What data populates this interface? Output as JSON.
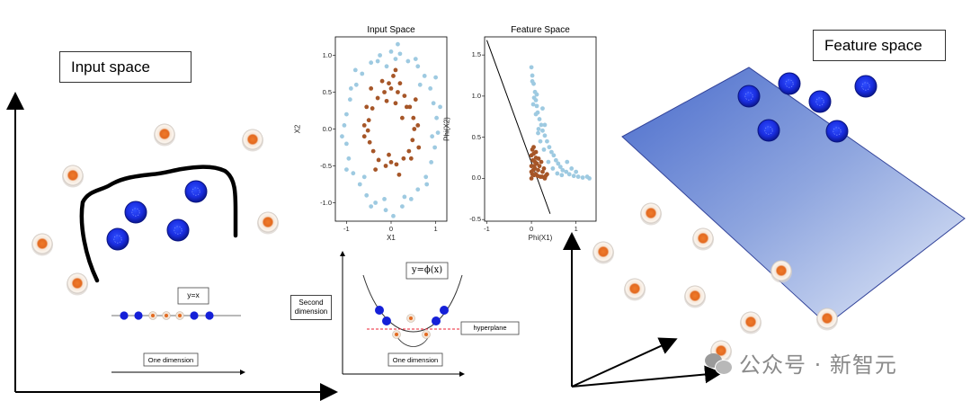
{
  "left_panel": {
    "title": "Input space",
    "inset_formula": "y=x",
    "inset_axis_label": "One dimension"
  },
  "middle_panel": {
    "formula": "y=ϕ(x)",
    "axis_y_label_line1": "Second",
    "axis_y_label_line2": "dimension",
    "axis_x_label": "One dimension",
    "hyperplane_label": "hyperplane"
  },
  "right_panel": {
    "title": "Feature space"
  },
  "watermark": {
    "text": "公众号 · 新智元"
  },
  "chart_data": [
    {
      "type": "scatter",
      "title": "Input Space",
      "xlabel": "X1",
      "ylabel": "X2",
      "xlim": [
        -1.25,
        1.25
      ],
      "ylim": [
        -1.25,
        1.25
      ],
      "xticks": [
        -1,
        0,
        1
      ],
      "yticks": [
        -1.0,
        -0.5,
        0.0,
        0.5,
        1.0
      ],
      "colors": {
        "outer": "#9ecae1",
        "inner": "#a65628"
      },
      "series": [
        {
          "points": [
            [
              0.0,
              1.05
            ],
            [
              0.2,
              1.02
            ],
            [
              -0.25,
              1.0
            ],
            [
              0.38,
              0.92
            ],
            [
              -0.45,
              0.9
            ],
            [
              0.6,
              0.85
            ],
            [
              -0.65,
              0.75
            ],
            [
              0.75,
              0.72
            ],
            [
              -0.78,
              0.6
            ],
            [
              0.88,
              0.55
            ],
            [
              -0.92,
              0.4
            ],
            [
              0.95,
              0.35
            ],
            [
              -1.0,
              0.2
            ],
            [
              1.02,
              0.15
            ],
            [
              -1.05,
              0.05
            ],
            [
              1.05,
              -0.05
            ],
            [
              -1.0,
              -0.2
            ],
            [
              0.98,
              -0.25
            ],
            [
              -0.95,
              -0.4
            ],
            [
              0.9,
              -0.45
            ],
            [
              -0.85,
              -0.6
            ],
            [
              0.78,
              -0.65
            ],
            [
              -0.7,
              -0.75
            ],
            [
              0.6,
              -0.82
            ],
            [
              -0.55,
              -0.9
            ],
            [
              0.45,
              -0.95
            ],
            [
              -0.35,
              -1.0
            ],
            [
              0.25,
              -1.05
            ],
            [
              -0.12,
              -1.1
            ],
            [
              0.05,
              -1.18
            ],
            [
              -0.45,
              -1.05
            ],
            [
              0.1,
              0.95
            ],
            [
              -0.1,
              0.85
            ],
            [
              0.55,
              0.95
            ],
            [
              -1.1,
              -0.1
            ],
            [
              1.1,
              0.3
            ],
            [
              -0.8,
              0.8
            ],
            [
              0.8,
              -0.75
            ],
            [
              -0.3,
              0.92
            ],
            [
              0.3,
              -0.92
            ],
            [
              1.0,
              0.7
            ],
            [
              -1.0,
              -0.55
            ],
            [
              0.65,
              0.6
            ],
            [
              -0.6,
              -0.65
            ],
            [
              0.15,
              1.15
            ],
            [
              -0.15,
              -0.95
            ],
            [
              -0.9,
              0.55
            ],
            [
              0.92,
              -0.1
            ]
          ]
        },
        {
          "points": [
            [
              0.0,
              0.55
            ],
            [
              0.15,
              0.5
            ],
            [
              -0.15,
              0.5
            ],
            [
              0.3,
              0.45
            ],
            [
              -0.3,
              0.42
            ],
            [
              0.42,
              0.3
            ],
            [
              -0.42,
              0.28
            ],
            [
              0.5,
              0.15
            ],
            [
              -0.5,
              0.12
            ],
            [
              0.52,
              0.0
            ],
            [
              -0.52,
              -0.02
            ],
            [
              0.48,
              -0.15
            ],
            [
              -0.48,
              -0.18
            ],
            [
              0.4,
              -0.3
            ],
            [
              -0.4,
              -0.3
            ],
            [
              0.28,
              -0.4
            ],
            [
              -0.28,
              -0.42
            ],
            [
              0.12,
              -0.48
            ],
            [
              -0.12,
              -0.5
            ],
            [
              0.0,
              -0.45
            ],
            [
              0.05,
              0.72
            ],
            [
              -0.05,
              0.62
            ],
            [
              0.2,
              0.62
            ],
            [
              -0.2,
              0.65
            ],
            [
              0.35,
              0.3
            ],
            [
              -0.55,
              0.3
            ],
            [
              0.6,
              0.05
            ],
            [
              -0.6,
              -0.1
            ],
            [
              0.45,
              -0.4
            ],
            [
              -0.35,
              -0.55
            ],
            [
              0.18,
              -0.62
            ],
            [
              -0.05,
              -0.35
            ],
            [
              0.1,
              0.35
            ],
            [
              -0.1,
              0.38
            ],
            [
              0.25,
              0.15
            ],
            [
              0.55,
              0.4
            ],
            [
              0.1,
              0.8
            ],
            [
              -0.6,
              0.05
            ],
            [
              0.62,
              -0.25
            ],
            [
              -0.45,
              0.55
            ]
          ]
        }
      ]
    },
    {
      "type": "scatter",
      "title": "Feature Space",
      "xlabel": "Phi(X1)",
      "ylabel": "Phi(X2)",
      "xlim": [
        -1.05,
        1.45
      ],
      "ylim": [
        -0.52,
        1.72
      ],
      "xticks": [
        -1,
        0,
        1
      ],
      "yticks": [
        -0.5,
        0.0,
        0.5,
        1.0,
        1.5
      ],
      "line": [
        [
          -1.0,
          1.68
        ],
        [
          0.42,
          -0.43
        ]
      ],
      "colors": {
        "outer": "#9ecae1",
        "inner": "#a65628"
      },
      "series": [
        {
          "points": [
            [
              0.0,
              1.35
            ],
            [
              0.02,
              1.25
            ],
            [
              0.05,
              1.15
            ],
            [
              0.08,
              1.05
            ],
            [
              0.1,
              0.95
            ],
            [
              0.12,
              0.88
            ],
            [
              0.14,
              0.8
            ],
            [
              0.18,
              0.72
            ],
            [
              0.22,
              0.65
            ],
            [
              0.25,
              0.58
            ],
            [
              0.3,
              0.52
            ],
            [
              0.35,
              0.45
            ],
            [
              0.4,
              0.38
            ],
            [
              0.45,
              0.32
            ],
            [
              0.5,
              0.28
            ],
            [
              0.55,
              0.22
            ],
            [
              0.6,
              0.18
            ],
            [
              0.65,
              0.14
            ],
            [
              0.7,
              0.1
            ],
            [
              0.78,
              0.08
            ],
            [
              0.85,
              0.05
            ],
            [
              0.95,
              0.03
            ],
            [
              1.05,
              0.02
            ],
            [
              1.15,
              0.01
            ],
            [
              1.25,
              0.02
            ],
            [
              1.3,
              0.0
            ],
            [
              0.02,
              1.18
            ],
            [
              0.06,
              0.98
            ],
            [
              0.1,
              0.78
            ],
            [
              0.16,
              0.6
            ],
            [
              0.2,
              0.45
            ],
            [
              0.28,
              0.35
            ],
            [
              0.38,
              0.2
            ],
            [
              0.48,
              0.12
            ],
            [
              0.58,
              0.06
            ],
            [
              0.68,
              0.04
            ],
            [
              0.8,
              0.2
            ],
            [
              0.9,
              0.12
            ],
            [
              1.0,
              0.08
            ],
            [
              0.12,
              1.02
            ],
            [
              0.04,
              0.9
            ],
            [
              0.25,
              0.85
            ],
            [
              0.3,
              0.65
            ],
            [
              0.15,
              0.55
            ]
          ]
        },
        {
          "points": [
            [
              0.0,
              0.0
            ],
            [
              0.02,
              0.05
            ],
            [
              0.04,
              0.1
            ],
            [
              0.06,
              0.15
            ],
            [
              0.08,
              0.2
            ],
            [
              0.1,
              0.25
            ],
            [
              0.05,
              0.3
            ],
            [
              0.02,
              0.35
            ],
            [
              0.1,
              0.05
            ],
            [
              0.15,
              0.1
            ],
            [
              0.2,
              0.02
            ],
            [
              0.25,
              0.08
            ],
            [
              0.3,
              0.0
            ],
            [
              0.35,
              0.05
            ],
            [
              0.0,
              0.15
            ],
            [
              0.03,
              0.22
            ],
            [
              0.12,
              0.18
            ],
            [
              0.18,
              0.15
            ],
            [
              0.22,
              0.2
            ],
            [
              0.0,
              0.28
            ],
            [
              0.05,
              0.38
            ],
            [
              0.08,
              0.12
            ],
            [
              0.14,
              0.03
            ],
            [
              0.28,
              0.12
            ],
            [
              0.32,
              0.03
            ],
            [
              0.0,
              0.08
            ],
            [
              0.06,
              0.04
            ],
            [
              0.16,
              0.24
            ],
            [
              0.1,
              0.32
            ],
            [
              0.24,
              0.02
            ]
          ]
        }
      ]
    }
  ]
}
